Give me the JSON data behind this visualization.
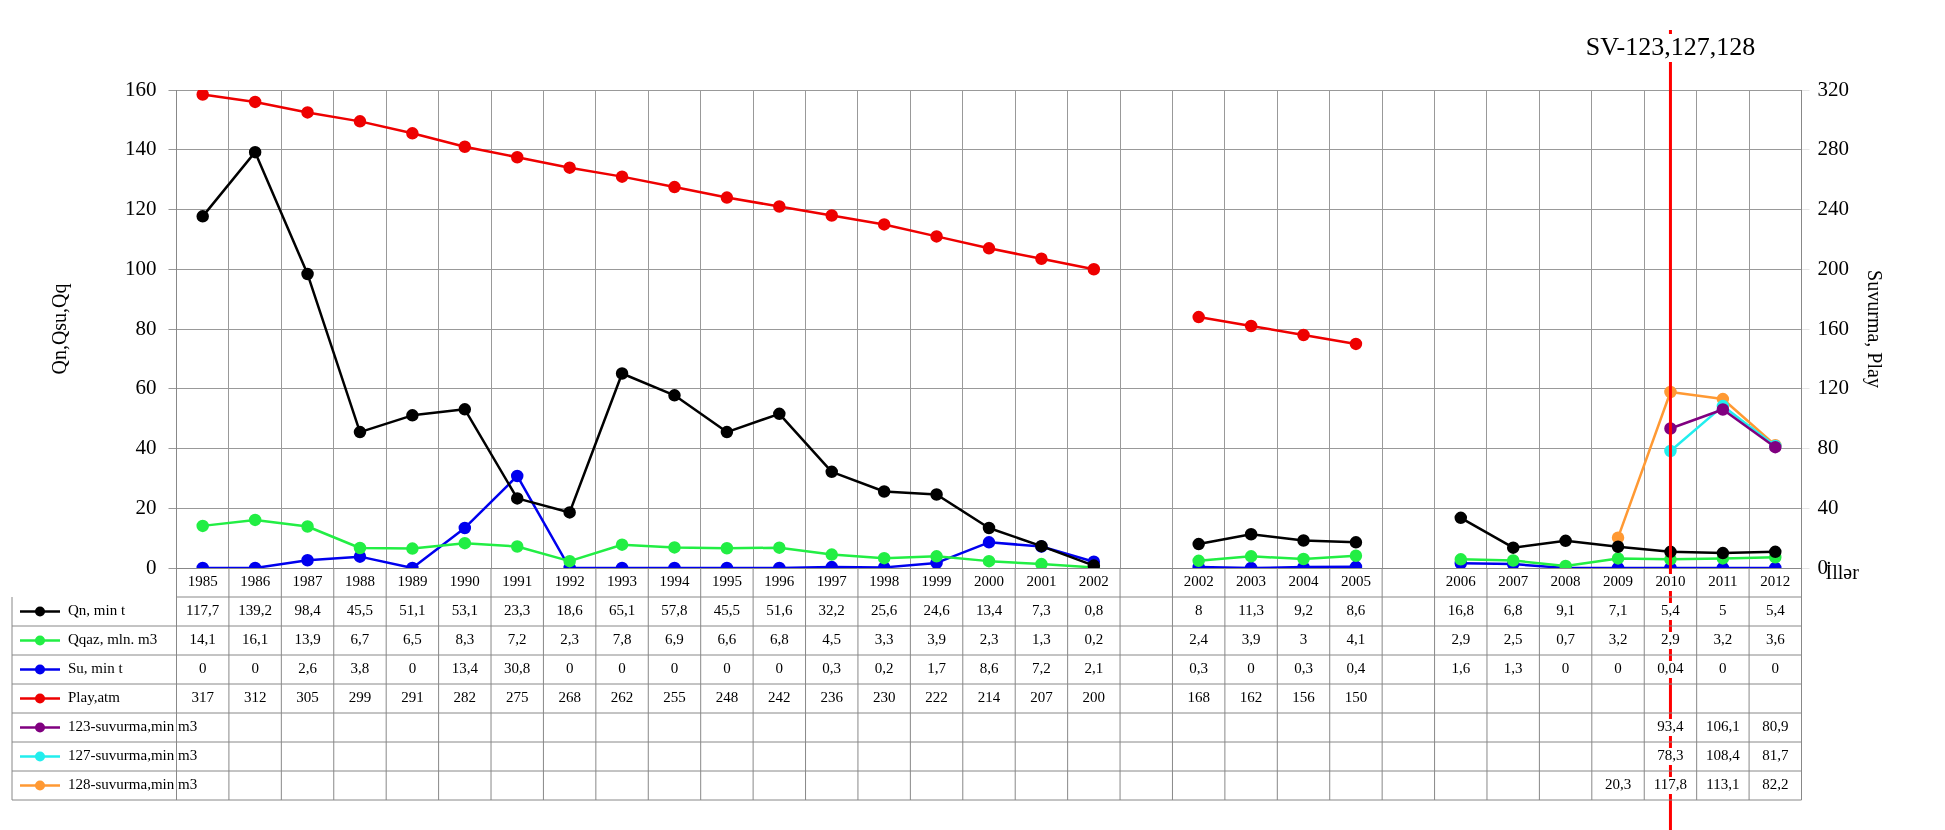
{
  "chart_data": {
    "type": "line",
    "title": "SV-123,127,128",
    "xlabel": "İllər",
    "ylabel": "Qn,Qsu,Qq",
    "y2label": "Suvurma, Play",
    "categories": [
      "1985",
      "1986",
      "1987",
      "1988",
      "1989",
      "1990",
      "1991",
      "1992",
      "1993",
      "1994",
      "1995",
      "1996",
      "1997",
      "1998",
      "1999",
      "2000",
      "2001",
      "2002",
      null,
      "2002",
      "2003",
      "2004",
      "2005",
      null,
      "2006",
      "2007",
      "2008",
      "2009",
      "2010",
      "2011",
      "2012"
    ],
    "series": [
      {
        "name": "Qn, min t",
        "color": "#000000",
        "values": [
          117.7,
          139.2,
          98.4,
          45.5,
          51.1,
          53.1,
          23.3,
          18.6,
          65.1,
          57.8,
          45.5,
          51.6,
          32.2,
          25.6,
          24.6,
          13.4,
          7.3,
          0.8,
          null,
          8,
          11.3,
          9.2,
          8.6,
          null,
          16.8,
          6.8,
          9.1,
          7.1,
          5.4,
          5,
          5.4
        ],
        "value_labels": [
          "117,7",
          "139,2",
          "98,4",
          "45,5",
          "51,1",
          "53,1",
          "23,3",
          "18,6",
          "65,1",
          "57,8",
          "45,5",
          "51,6",
          "32,2",
          "25,6",
          "24,6",
          "13,4",
          "7,3",
          "0,8",
          null,
          "8",
          "11,3",
          "9,2",
          "8,6",
          null,
          "16,8",
          "6,8",
          "9,1",
          "7,1",
          "5,4",
          "5",
          "5,4"
        ]
      },
      {
        "name": "Qqaz, mln. m3",
        "color": "#22ee44",
        "values": [
          14.1,
          16.1,
          13.9,
          6.7,
          6.5,
          8.3,
          7.2,
          2.3,
          7.8,
          6.9,
          6.6,
          6.8,
          4.5,
          3.3,
          3.9,
          2.3,
          1.3,
          0.2,
          null,
          2.4,
          3.9,
          3,
          4.1,
          null,
          2.9,
          2.5,
          0.7,
          3.2,
          2.9,
          3.2,
          3.6
        ],
        "value_labels": [
          "14,1",
          "16,1",
          "13,9",
          "6,7",
          "6,5",
          "8,3",
          "7,2",
          "2,3",
          "7,8",
          "6,9",
          "6,6",
          "6,8",
          "4,5",
          "3,3",
          "3,9",
          "2,3",
          "1,3",
          "0,2",
          null,
          "2,4",
          "3,9",
          "3",
          "4,1",
          null,
          "2,9",
          "2,5",
          "0,7",
          "3,2",
          "2,9",
          "3,2",
          "3,6"
        ]
      },
      {
        "name": "Su, min t",
        "color": "#0000ee",
        "values": [
          0,
          0,
          2.6,
          3.8,
          0,
          13.4,
          30.8,
          0,
          0,
          0,
          0,
          0,
          0.3,
          0.2,
          1.7,
          8.6,
          7.2,
          2.1,
          null,
          0.3,
          0,
          0.3,
          0.4,
          null,
          1.6,
          1.3,
          0,
          0,
          0.04,
          0,
          0
        ],
        "value_labels": [
          "0",
          "0",
          "2,6",
          "3,8",
          "0",
          "13,4",
          "30,8",
          "0",
          "0",
          "0",
          "0",
          "0",
          "0,3",
          "0,2",
          "1,7",
          "8,6",
          "7,2",
          "2,1",
          null,
          "0,3",
          "0",
          "0,3",
          "0,4",
          null,
          "1,6",
          "1,3",
          "0",
          "0",
          "0,04",
          "0",
          "0"
        ]
      },
      {
        "name": "Play,atm",
        "color": "#ee0000",
        "axis": "y2",
        "values": [
          317,
          312,
          305,
          299,
          291,
          282,
          275,
          268,
          262,
          255,
          248,
          242,
          236,
          230,
          222,
          214,
          207,
          200,
          null,
          168,
          162,
          156,
          150,
          null,
          null,
          null,
          null,
          null,
          null,
          null,
          null
        ],
        "value_labels": [
          "317",
          "312",
          "305",
          "299",
          "291",
          "282",
          "275",
          "268",
          "262",
          "255",
          "248",
          "242",
          "236",
          "230",
          "222",
          "214",
          "207",
          "200",
          null,
          "168",
          "162",
          "156",
          "150",
          null,
          null,
          null,
          null,
          null,
          null,
          null,
          null
        ]
      },
      {
        "name": "123-suvurma,min m3",
        "color": "#800080",
        "axis": "y2",
        "values": [
          null,
          null,
          null,
          null,
          null,
          null,
          null,
          null,
          null,
          null,
          null,
          null,
          null,
          null,
          null,
          null,
          null,
          null,
          null,
          null,
          null,
          null,
          null,
          null,
          null,
          null,
          null,
          null,
          93.4,
          106.1,
          80.9
        ],
        "value_labels": [
          null,
          null,
          null,
          null,
          null,
          null,
          null,
          null,
          null,
          null,
          null,
          null,
          null,
          null,
          null,
          null,
          null,
          null,
          null,
          null,
          null,
          null,
          null,
          null,
          null,
          null,
          null,
          null,
          "93,4",
          "106,1",
          "80,9"
        ]
      },
      {
        "name": "127-suvurma,min m3",
        "color": "#22eeee",
        "axis": "y2",
        "values": [
          null,
          null,
          null,
          null,
          null,
          null,
          null,
          null,
          null,
          null,
          null,
          null,
          null,
          null,
          null,
          null,
          null,
          null,
          null,
          null,
          null,
          null,
          null,
          null,
          null,
          null,
          null,
          null,
          78.3,
          108.4,
          81.7
        ],
        "value_labels": [
          null,
          null,
          null,
          null,
          null,
          null,
          null,
          null,
          null,
          null,
          null,
          null,
          null,
          null,
          null,
          null,
          null,
          null,
          null,
          null,
          null,
          null,
          null,
          null,
          null,
          null,
          null,
          null,
          "78,3",
          "108,4",
          "81,7"
        ]
      },
      {
        "name": "128-suvurma,min m3",
        "color": "#ff9933",
        "axis": "y2",
        "values": [
          null,
          null,
          null,
          null,
          null,
          null,
          null,
          null,
          null,
          null,
          null,
          null,
          null,
          null,
          null,
          null,
          null,
          null,
          null,
          null,
          null,
          null,
          null,
          null,
          null,
          null,
          null,
          20.3,
          117.8,
          113.1,
          82.2
        ],
        "value_labels": [
          null,
          null,
          null,
          null,
          null,
          null,
          null,
          null,
          null,
          null,
          null,
          null,
          null,
          null,
          null,
          null,
          null,
          null,
          null,
          null,
          null,
          null,
          null,
          null,
          null,
          null,
          null,
          "20,3",
          "117,8",
          "113,1",
          "82,2"
        ]
      }
    ],
    "ylim": [
      0,
      160
    ],
    "yticks": [
      0,
      20,
      40,
      60,
      80,
      100,
      120,
      140,
      160
    ],
    "y2lim": [
      0,
      320
    ],
    "y2ticks": [
      0,
      40,
      80,
      120,
      160,
      200,
      240,
      280,
      320
    ],
    "ref_lines": [
      {
        "axis": "x",
        "value": "2010",
        "color": "#ff0000"
      }
    ],
    "legend": "bottom left",
    "grid": true,
    "marker": "circle",
    "line_style": "solid"
  }
}
